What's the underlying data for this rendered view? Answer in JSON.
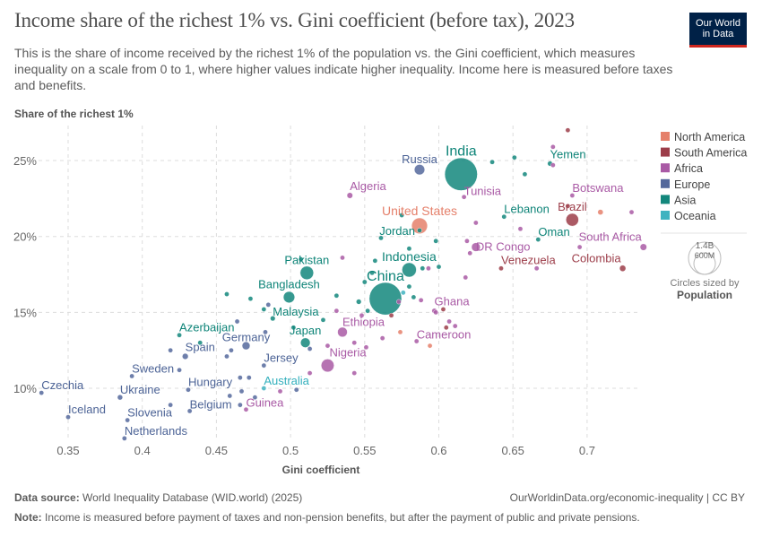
{
  "header": {
    "title": "Income share of the richest 1% vs. Gini coefficient (before tax), 2023",
    "subtitle": "This is the share of income received by the richest 1% of the population vs. the Gini coefficient, which measures inequality on a scale from 0 to 1, where higher values indicate higher inequality. Income here is measured before taxes and benefits.",
    "logo_line1": "Our World",
    "logo_line2": "in Data"
  },
  "chart_data": {
    "type": "scatter",
    "ylabel": "Share of the richest 1%",
    "xlabel": "Gini coefficient",
    "xlim": [
      0.33,
      0.74
    ],
    "ylim": [
      6.5,
      27
    ],
    "x_ticks": [
      0.35,
      0.4,
      0.45,
      0.5,
      0.55,
      0.6,
      0.65,
      0.7
    ],
    "x_tick_labels": [
      "0.35",
      "0.4",
      "0.45",
      "0.5",
      "0.55",
      "0.6",
      "0.65",
      "0.7"
    ],
    "y_ticks": [
      10,
      15,
      20,
      25
    ],
    "y_tick_labels": [
      "10%",
      "15%",
      "20%",
      "25%"
    ],
    "grid": true,
    "legend_placement": "right",
    "regions": [
      {
        "name": "North America",
        "color": "#e5806b"
      },
      {
        "name": "South America",
        "color": "#9c3d49"
      },
      {
        "name": "Africa",
        "color": "#a95aa5"
      },
      {
        "name": "Europe",
        "color": "#55699c"
      },
      {
        "name": "Asia",
        "color": "#13877c"
      },
      {
        "name": "Oceania",
        "color": "#40b3c0"
      }
    ],
    "size_legend": {
      "title": "Circles sized by",
      "variable": "Population",
      "large": "1.4B",
      "small": "600M"
    },
    "points": [
      {
        "name": "India",
        "region": "Asia",
        "x": 0.615,
        "y": 24.1,
        "pop": 1430,
        "label": true
      },
      {
        "name": "China",
        "region": "Asia",
        "x": 0.564,
        "y": 15.9,
        "pop": 1410,
        "label": true
      },
      {
        "name": "United States",
        "region": "North America",
        "x": 0.587,
        "y": 20.7,
        "pop": 335,
        "label": true
      },
      {
        "name": "Indonesia",
        "region": "Asia",
        "x": 0.58,
        "y": 17.8,
        "pop": 277,
        "label": true
      },
      {
        "name": "Pakistan",
        "region": "Asia",
        "x": 0.511,
        "y": 17.6,
        "pop": 240,
        "label": true
      },
      {
        "name": "Nigeria",
        "region": "Africa",
        "x": 0.525,
        "y": 11.5,
        "pop": 224,
        "label": true
      },
      {
        "name": "Brazil",
        "region": "South America",
        "x": 0.69,
        "y": 21.1,
        "pop": 216,
        "label": true
      },
      {
        "name": "Bangladesh",
        "region": "Asia",
        "x": 0.499,
        "y": 16.0,
        "pop": 173,
        "label": true
      },
      {
        "name": "Russia",
        "region": "Europe",
        "x": 0.587,
        "y": 24.4,
        "pop": 144,
        "label": true
      },
      {
        "name": "Ethiopia",
        "region": "Africa",
        "x": 0.535,
        "y": 13.7,
        "pop": 127,
        "label": true
      },
      {
        "name": "Japan",
        "region": "Asia",
        "x": 0.51,
        "y": 13.0,
        "pop": 124,
        "label": true
      },
      {
        "name": "DR Congo",
        "region": "Africa",
        "x": 0.625,
        "y": 19.3,
        "pop": 102,
        "label": true
      },
      {
        "name": "Germany",
        "region": "Europe",
        "x": 0.47,
        "y": 12.8,
        "pop": 84,
        "label": true
      },
      {
        "name": "South Africa",
        "region": "Africa",
        "x": 0.738,
        "y": 19.3,
        "pop": 60,
        "label": true
      },
      {
        "name": "Colombia",
        "region": "South America",
        "x": 0.724,
        "y": 17.9,
        "pop": 52,
        "label": true
      },
      {
        "name": "Algeria",
        "region": "Africa",
        "x": 0.54,
        "y": 22.7,
        "pop": 45,
        "label": true
      },
      {
        "name": "Spain",
        "region": "Europe",
        "x": 0.429,
        "y": 12.1,
        "pop": 48,
        "label": true
      },
      {
        "name": "Ukraine",
        "region": "Europe",
        "x": 0.385,
        "y": 9.4,
        "pop": 37,
        "label": true
      },
      {
        "name": "Malaysia",
        "region": "Asia",
        "x": 0.488,
        "y": 14.6,
        "pop": 34,
        "label": true
      },
      {
        "name": "Yemen",
        "region": "Asia",
        "x": 0.675,
        "y": 24.8,
        "pop": 34,
        "label": true
      },
      {
        "name": "Ghana",
        "region": "Africa",
        "x": 0.597,
        "y": 15.1,
        "pop": 34,
        "label": true
      },
      {
        "name": "Cameroon",
        "region": "Africa",
        "x": 0.585,
        "y": 13.1,
        "pop": 28,
        "label": true
      },
      {
        "name": "Venezuela",
        "region": "South America",
        "x": 0.642,
        "y": 17.9,
        "pop": 28,
        "label": true
      },
      {
        "name": "Australia",
        "region": "Oceania",
        "x": 0.482,
        "y": 10.0,
        "pop": 26,
        "label": true
      },
      {
        "name": "Netherlands",
        "region": "Europe",
        "x": 0.388,
        "y": 6.7,
        "pop": 18,
        "label": true
      },
      {
        "name": "Guinea",
        "region": "Africa",
        "x": 0.47,
        "y": 8.6,
        "pop": 14,
        "label": true
      },
      {
        "name": "Tunisia",
        "region": "Africa",
        "x": 0.617,
        "y": 22.6,
        "pop": 12,
        "label": true
      },
      {
        "name": "Belgium",
        "region": "Europe",
        "x": 0.432,
        "y": 8.5,
        "pop": 12,
        "label": true
      },
      {
        "name": "Jordan",
        "region": "Asia",
        "x": 0.587,
        "y": 20.4,
        "pop": 11,
        "label": true
      },
      {
        "name": "Czechia",
        "region": "Europe",
        "x": 0.332,
        "y": 9.7,
        "pop": 11,
        "label": true
      },
      {
        "name": "Sweden",
        "region": "Europe",
        "x": 0.393,
        "y": 10.8,
        "pop": 10,
        "label": true
      },
      {
        "name": "Azerbaijan",
        "region": "Asia",
        "x": 0.425,
        "y": 13.5,
        "pop": 10,
        "label": true
      },
      {
        "name": "Hungary",
        "region": "Europe",
        "x": 0.431,
        "y": 9.9,
        "pop": 10,
        "label": true
      },
      {
        "name": "Lebanon",
        "region": "Asia",
        "x": 0.644,
        "y": 21.3,
        "pop": 5,
        "label": true
      },
      {
        "name": "Oman",
        "region": "Asia",
        "x": 0.667,
        "y": 19.8,
        "pop": 5,
        "label": true
      },
      {
        "name": "Botswana",
        "region": "Africa",
        "x": 0.69,
        "y": 22.7,
        "pop": 3,
        "label": true
      },
      {
        "name": "Slovenia",
        "region": "Europe",
        "x": 0.39,
        "y": 7.9,
        "pop": 2,
        "label": true
      },
      {
        "name": "Iceland",
        "region": "Europe",
        "x": 0.35,
        "y": 8.1,
        "pop": 0.4,
        "label": true
      },
      {
        "name": "Jersey",
        "region": "Europe",
        "x": 0.482,
        "y": 11.5,
        "pop": 0.1,
        "label": true
      },
      {
        "region": "North America",
        "x": 0.709,
        "y": 21.6,
        "pop": 40
      },
      {
        "region": "North America",
        "x": 0.574,
        "y": 13.7,
        "pop": 3
      },
      {
        "region": "North America",
        "x": 0.594,
        "y": 12.8,
        "pop": 3
      },
      {
        "region": "South America",
        "x": 0.687,
        "y": 27.0,
        "pop": 3
      },
      {
        "region": "South America",
        "x": 0.687,
        "y": 22.0,
        "pop": 3
      },
      {
        "region": "South America",
        "x": 0.568,
        "y": 14.8,
        "pop": 3
      },
      {
        "region": "South America",
        "x": 0.605,
        "y": 14.0,
        "pop": 3
      },
      {
        "region": "South America",
        "x": 0.603,
        "y": 15.2,
        "pop": 2
      },
      {
        "region": "Africa",
        "x": 0.677,
        "y": 25.9,
        "pop": 4
      },
      {
        "region": "Africa",
        "x": 0.677,
        "y": 24.7,
        "pop": 4
      },
      {
        "region": "Africa",
        "x": 0.625,
        "y": 20.9,
        "pop": 5
      },
      {
        "region": "Africa",
        "x": 0.655,
        "y": 20.5,
        "pop": 3
      },
      {
        "region": "Africa",
        "x": 0.73,
        "y": 21.6,
        "pop": 2
      },
      {
        "region": "Africa",
        "x": 0.695,
        "y": 19.3,
        "pop": 3
      },
      {
        "region": "Africa",
        "x": 0.666,
        "y": 17.9,
        "pop": 3
      },
      {
        "region": "Africa",
        "x": 0.619,
        "y": 19.7,
        "pop": 3
      },
      {
        "region": "Africa",
        "x": 0.621,
        "y": 18.9,
        "pop": 3
      },
      {
        "region": "Africa",
        "x": 0.593,
        "y": 17.9,
        "pop": 20
      },
      {
        "region": "Africa",
        "x": 0.618,
        "y": 17.3,
        "pop": 2
      },
      {
        "region": "Africa",
        "x": 0.588,
        "y": 15.8,
        "pop": 4
      },
      {
        "region": "Africa",
        "x": 0.573,
        "y": 15.7,
        "pop": 20
      },
      {
        "region": "Africa",
        "x": 0.598,
        "y": 15.0,
        "pop": 5
      },
      {
        "region": "Africa",
        "x": 0.607,
        "y": 14.4,
        "pop": 3
      },
      {
        "region": "Africa",
        "x": 0.611,
        "y": 14.1,
        "pop": 3
      },
      {
        "region": "Africa",
        "x": 0.562,
        "y": 13.3,
        "pop": 6
      },
      {
        "region": "Africa",
        "x": 0.535,
        "y": 18.6,
        "pop": 12
      },
      {
        "region": "Africa",
        "x": 0.531,
        "y": 15.1,
        "pop": 10
      },
      {
        "region": "Africa",
        "x": 0.548,
        "y": 14.8,
        "pop": 2
      },
      {
        "region": "Africa",
        "x": 0.543,
        "y": 13.0,
        "pop": 2
      },
      {
        "region": "Africa",
        "x": 0.551,
        "y": 12.7,
        "pop": 2
      },
      {
        "region": "Africa",
        "x": 0.543,
        "y": 11.0,
        "pop": 2
      },
      {
        "region": "Africa",
        "x": 0.513,
        "y": 11.0,
        "pop": 2
      },
      {
        "region": "Africa",
        "x": 0.525,
        "y": 12.8,
        "pop": 2
      },
      {
        "region": "Africa",
        "x": 0.493,
        "y": 9.8,
        "pop": 2
      },
      {
        "region": "Europe",
        "x": 0.419,
        "y": 12.5,
        "pop": 2
      },
      {
        "region": "Europe",
        "x": 0.425,
        "y": 11.2,
        "pop": 2
      },
      {
        "region": "Europe",
        "x": 0.419,
        "y": 8.9,
        "pop": 2
      },
      {
        "region": "Europe",
        "x": 0.464,
        "y": 14.4,
        "pop": 2
      },
      {
        "region": "Europe",
        "x": 0.46,
        "y": 12.5,
        "pop": 3
      },
      {
        "region": "Europe",
        "x": 0.457,
        "y": 12.1,
        "pop": 20
      },
      {
        "region": "Europe",
        "x": 0.485,
        "y": 15.5,
        "pop": 9
      },
      {
        "region": "Europe",
        "x": 0.483,
        "y": 13.7,
        "pop": 2
      },
      {
        "region": "Europe",
        "x": 0.466,
        "y": 10.7,
        "pop": 2
      },
      {
        "region": "Europe",
        "x": 0.472,
        "y": 10.7,
        "pop": 2
      },
      {
        "region": "Europe",
        "x": 0.467,
        "y": 9.8,
        "pop": 2
      },
      {
        "region": "Europe",
        "x": 0.459,
        "y": 9.5,
        "pop": 2
      },
      {
        "region": "Europe",
        "x": 0.466,
        "y": 8.9,
        "pop": 2
      },
      {
        "region": "Europe",
        "x": 0.476,
        "y": 9.4,
        "pop": 2
      },
      {
        "region": "Europe",
        "x": 0.504,
        "y": 9.9,
        "pop": 2
      },
      {
        "region": "Europe",
        "x": 0.513,
        "y": 12.6,
        "pop": 10
      },
      {
        "region": "Asia",
        "x": 0.439,
        "y": 13.0,
        "pop": 2
      },
      {
        "region": "Asia",
        "x": 0.457,
        "y": 16.2,
        "pop": 8
      },
      {
        "region": "Asia",
        "x": 0.473,
        "y": 15.9,
        "pop": 2
      },
      {
        "region": "Asia",
        "x": 0.482,
        "y": 15.2,
        "pop": 8
      },
      {
        "region": "Asia",
        "x": 0.507,
        "y": 18.5,
        "pop": 2
      },
      {
        "region": "Asia",
        "x": 0.531,
        "y": 16.1,
        "pop": 2
      },
      {
        "region": "Asia",
        "x": 0.522,
        "y": 14.5,
        "pop": 2
      },
      {
        "region": "Asia",
        "x": 0.502,
        "y": 14.0,
        "pop": 4
      },
      {
        "region": "Asia",
        "x": 0.557,
        "y": 18.4,
        "pop": 2
      },
      {
        "region": "Asia",
        "x": 0.555,
        "y": 17.6,
        "pop": 5
      },
      {
        "region": "Asia",
        "x": 0.55,
        "y": 17.0,
        "pop": 30
      },
      {
        "region": "Asia",
        "x": 0.546,
        "y": 15.7,
        "pop": 35
      },
      {
        "region": "Asia",
        "x": 0.552,
        "y": 15.1,
        "pop": 4
      },
      {
        "region": "Asia",
        "x": 0.636,
        "y": 24.9,
        "pop": 6
      },
      {
        "region": "Asia",
        "x": 0.651,
        "y": 25.2,
        "pop": 2
      },
      {
        "region": "Asia",
        "x": 0.658,
        "y": 24.1,
        "pop": 2
      },
      {
        "region": "Asia",
        "x": 0.575,
        "y": 21.4,
        "pop": 3
      },
      {
        "region": "Asia",
        "x": 0.561,
        "y": 19.9,
        "pop": 2
      },
      {
        "region": "Asia",
        "x": 0.598,
        "y": 19.7,
        "pop": 3
      },
      {
        "region": "Asia",
        "x": 0.58,
        "y": 19.2,
        "pop": 2
      },
      {
        "region": "Asia",
        "x": 0.6,
        "y": 18.0,
        "pop": 2
      },
      {
        "region": "Asia",
        "x": 0.589,
        "y": 17.9,
        "pop": 20
      },
      {
        "region": "Asia",
        "x": 0.58,
        "y": 16.7,
        "pop": 2
      },
      {
        "region": "Asia",
        "x": 0.583,
        "y": 16.0,
        "pop": 2
      },
      {
        "region": "Oceania",
        "x": 0.576,
        "y": 16.3,
        "pop": 2
      }
    ]
  },
  "footer": {
    "source_label": "Data source:",
    "source": "World Inequality Database (WID.world) (2025)",
    "url": "OurWorldinData.org/economic-inequality | CC BY",
    "note_label": "Note:",
    "note": "Income is measured before payment of taxes and non-pension benefits, but after the payment of public and private pensions."
  }
}
